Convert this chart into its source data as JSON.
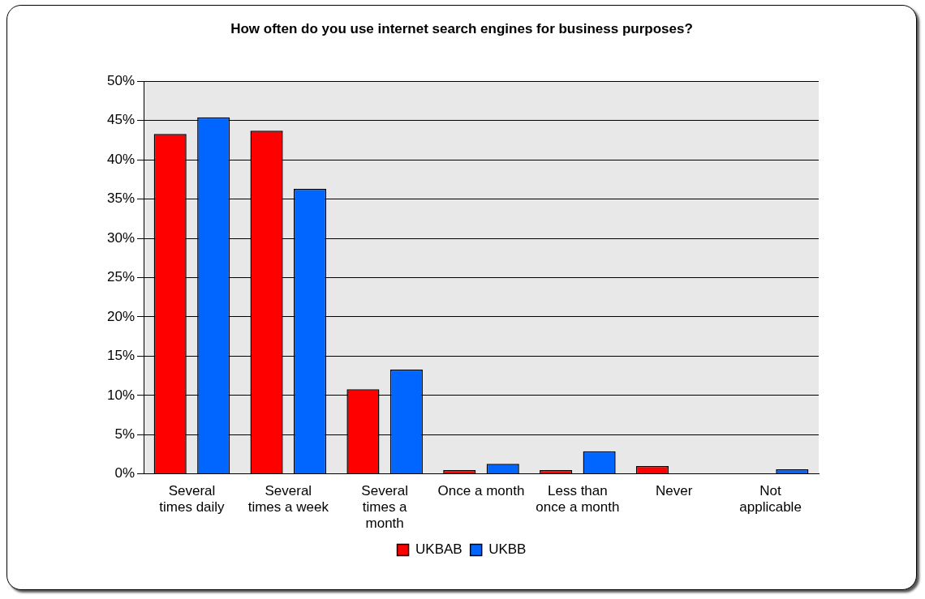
{
  "chart_data": {
    "type": "bar",
    "title": "How often do you use internet search engines for business purposes?",
    "categories": [
      "Several times daily",
      "Several times a week",
      "Several times a month",
      "Once a month",
      "Less than once a month",
      "Never",
      "Not applicable"
    ],
    "series": [
      {
        "name": "UKBAB",
        "color": "#ff0000",
        "values": [
          43.3,
          43.7,
          10.8,
          0.5,
          0.5,
          1.0,
          0
        ]
      },
      {
        "name": "UKBB",
        "color": "#0066ff",
        "values": [
          45.4,
          36.3,
          13.3,
          1.3,
          2.9,
          0,
          0.6
        ]
      }
    ],
    "ylim": [
      0,
      50
    ],
    "yticks": [
      {
        "value": 0,
        "label": "0%"
      },
      {
        "value": 5,
        "label": "5%"
      },
      {
        "value": 10,
        "label": "10%"
      },
      {
        "value": 15,
        "label": "15%"
      },
      {
        "value": 20,
        "label": "20%"
      },
      {
        "value": 25,
        "label": "25%"
      },
      {
        "value": 30,
        "label": "30%"
      },
      {
        "value": 35,
        "label": "35%"
      },
      {
        "value": 40,
        "label": "40%"
      },
      {
        "value": 45,
        "label": "45%"
      },
      {
        "value": 50,
        "label": "50%"
      }
    ],
    "grid": "y",
    "legend": "bottom"
  }
}
